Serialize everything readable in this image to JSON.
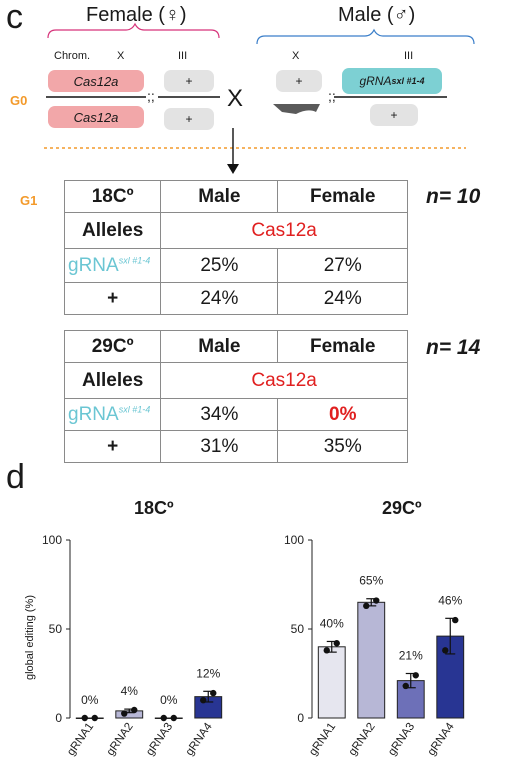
{
  "panel_c": {
    "letter": "c",
    "female_title": "Female (♀)",
    "male_title": "Male (♂)",
    "chrom_label": "Chrom.",
    "chrom_x": "X",
    "chrom_iii": "III",
    "male_chrom_x": "X",
    "male_chrom_iii": "III",
    "g0": "G0",
    "g1": "G1",
    "cross": "X",
    "semi": ";;",
    "female_x_top": "Cas12a",
    "female_x_bottom": "Cas12a",
    "female_iii_top": "+",
    "female_iii_bottom": "+",
    "male_x_top": "+",
    "male_iii_top_base": "gRNA",
    "male_iii_top_sup": "sxl #1-4",
    "male_iii_bottom": "+"
  },
  "table_18": {
    "temp": "18Cº",
    "col_male": "Male",
    "col_female": "Female",
    "alleles": "Alleles",
    "driver": "Cas12a",
    "row1_label": "gRNA",
    "row1_sup": "sxl #1-4",
    "row1_male": "25%",
    "row1_female": "27%",
    "row2_label": "+",
    "row2_male": "24%",
    "row2_female": "24%",
    "n": "n= 10"
  },
  "table_29": {
    "temp": "29Cº",
    "col_male": "Male",
    "col_female": "Female",
    "alleles": "Alleles",
    "driver": "Cas12a",
    "row1_label": "gRNA",
    "row1_sup": "sxl #1-4",
    "row1_male": "34%",
    "row1_female": "0%",
    "row2_label": "+",
    "row2_male": "31%",
    "row2_female": "35%",
    "n": "n= 14"
  },
  "panel_d": {
    "letter": "d",
    "ylabel": "global editing (%)"
  },
  "chart_data": [
    {
      "type": "bar",
      "title": "18Cº",
      "categories": [
        "gRNA1",
        "gRNA2",
        "gRNA3",
        "gRNA4"
      ],
      "values": [
        0,
        4,
        0,
        12
      ],
      "value_labels": [
        "0%",
        "4%",
        "0%",
        "12%"
      ],
      "points": [
        [
          0,
          0
        ],
        [
          2.5,
          4.5
        ],
        [
          0,
          0
        ],
        [
          10,
          14
        ]
      ],
      "errors": [
        0,
        1,
        0,
        3
      ],
      "colors": [
        "#e6e6ef",
        "#b7b7d6",
        "#6d70b8",
        "#283593"
      ],
      "ylim": [
        0,
        100
      ],
      "yticks": [
        0,
        50,
        100
      ],
      "ylabel": "global editing (%)",
      "grid": false
    },
    {
      "type": "bar",
      "title": "29Cº",
      "categories": [
        "gRNA1",
        "gRNA2",
        "gRNA3",
        "gRNA4"
      ],
      "values": [
        40,
        65,
        21,
        46
      ],
      "value_labels": [
        "40%",
        "65%",
        "21%",
        "46%"
      ],
      "points": [
        [
          38,
          42
        ],
        [
          63,
          66
        ],
        [
          18,
          24
        ],
        [
          38,
          55
        ]
      ],
      "errors": [
        3,
        2,
        4,
        10
      ],
      "colors": [
        "#e6e6ef",
        "#b7b7d6",
        "#6d70b8",
        "#283593"
      ],
      "ylim": [
        0,
        100
      ],
      "yticks": [
        0,
        50,
        100
      ],
      "grid": false
    }
  ]
}
